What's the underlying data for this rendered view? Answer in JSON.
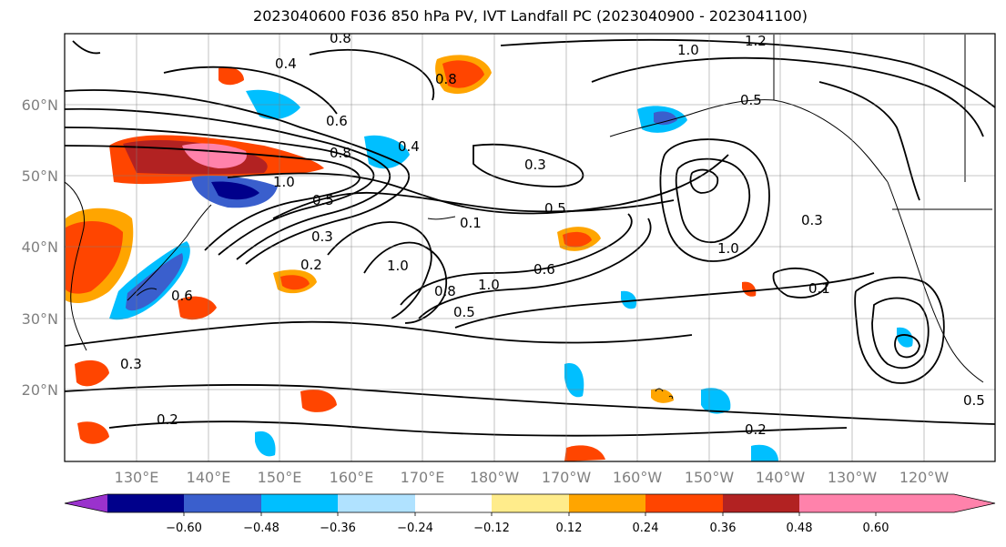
{
  "title": "2023040600 F036 850 hPa PV, IVT Landfall PC (2023040900 - 2023041100)",
  "lat_labels": [
    "60°N",
    "50°N",
    "40°N",
    "30°N",
    "20°N"
  ],
  "lon_labels": [
    "130°E",
    "140°E",
    "150°E",
    "160°E",
    "170°E",
    "180°W",
    "170°W",
    "160°W",
    "150°W",
    "140°W",
    "130°W",
    "120°W"
  ],
  "colorbar": {
    "tick_labels": [
      "−0.60",
      "−0.48",
      "−0.36",
      "−0.24",
      "−0.12",
      "0.12",
      "0.24",
      "0.36",
      "0.48",
      "0.60"
    ],
    "colors": [
      "#9a32cd",
      "#00008b",
      "#3a5fcd",
      "#00bfff",
      "#b0e2ff",
      "#ffffff",
      "#ffec8b",
      "#ffa500",
      "#ff4500",
      "#b22222",
      "#ff82ab"
    ]
  },
  "contour_labels": [
    "0.8",
    "1.2",
    "1.0",
    "0.5",
    "0.6",
    "0.4",
    "0.3",
    "0.5",
    "0.8",
    "1.0",
    "0.3",
    "0.5",
    "0.2",
    "1.0",
    "0.1",
    "1.0",
    "0.6",
    "0.8",
    "0.5",
    "0.3",
    "1.0",
    "0.3",
    "0.1",
    "0.2",
    "0.2",
    "0.5",
    "0.6",
    "0.8",
    "0.4"
  ]
}
